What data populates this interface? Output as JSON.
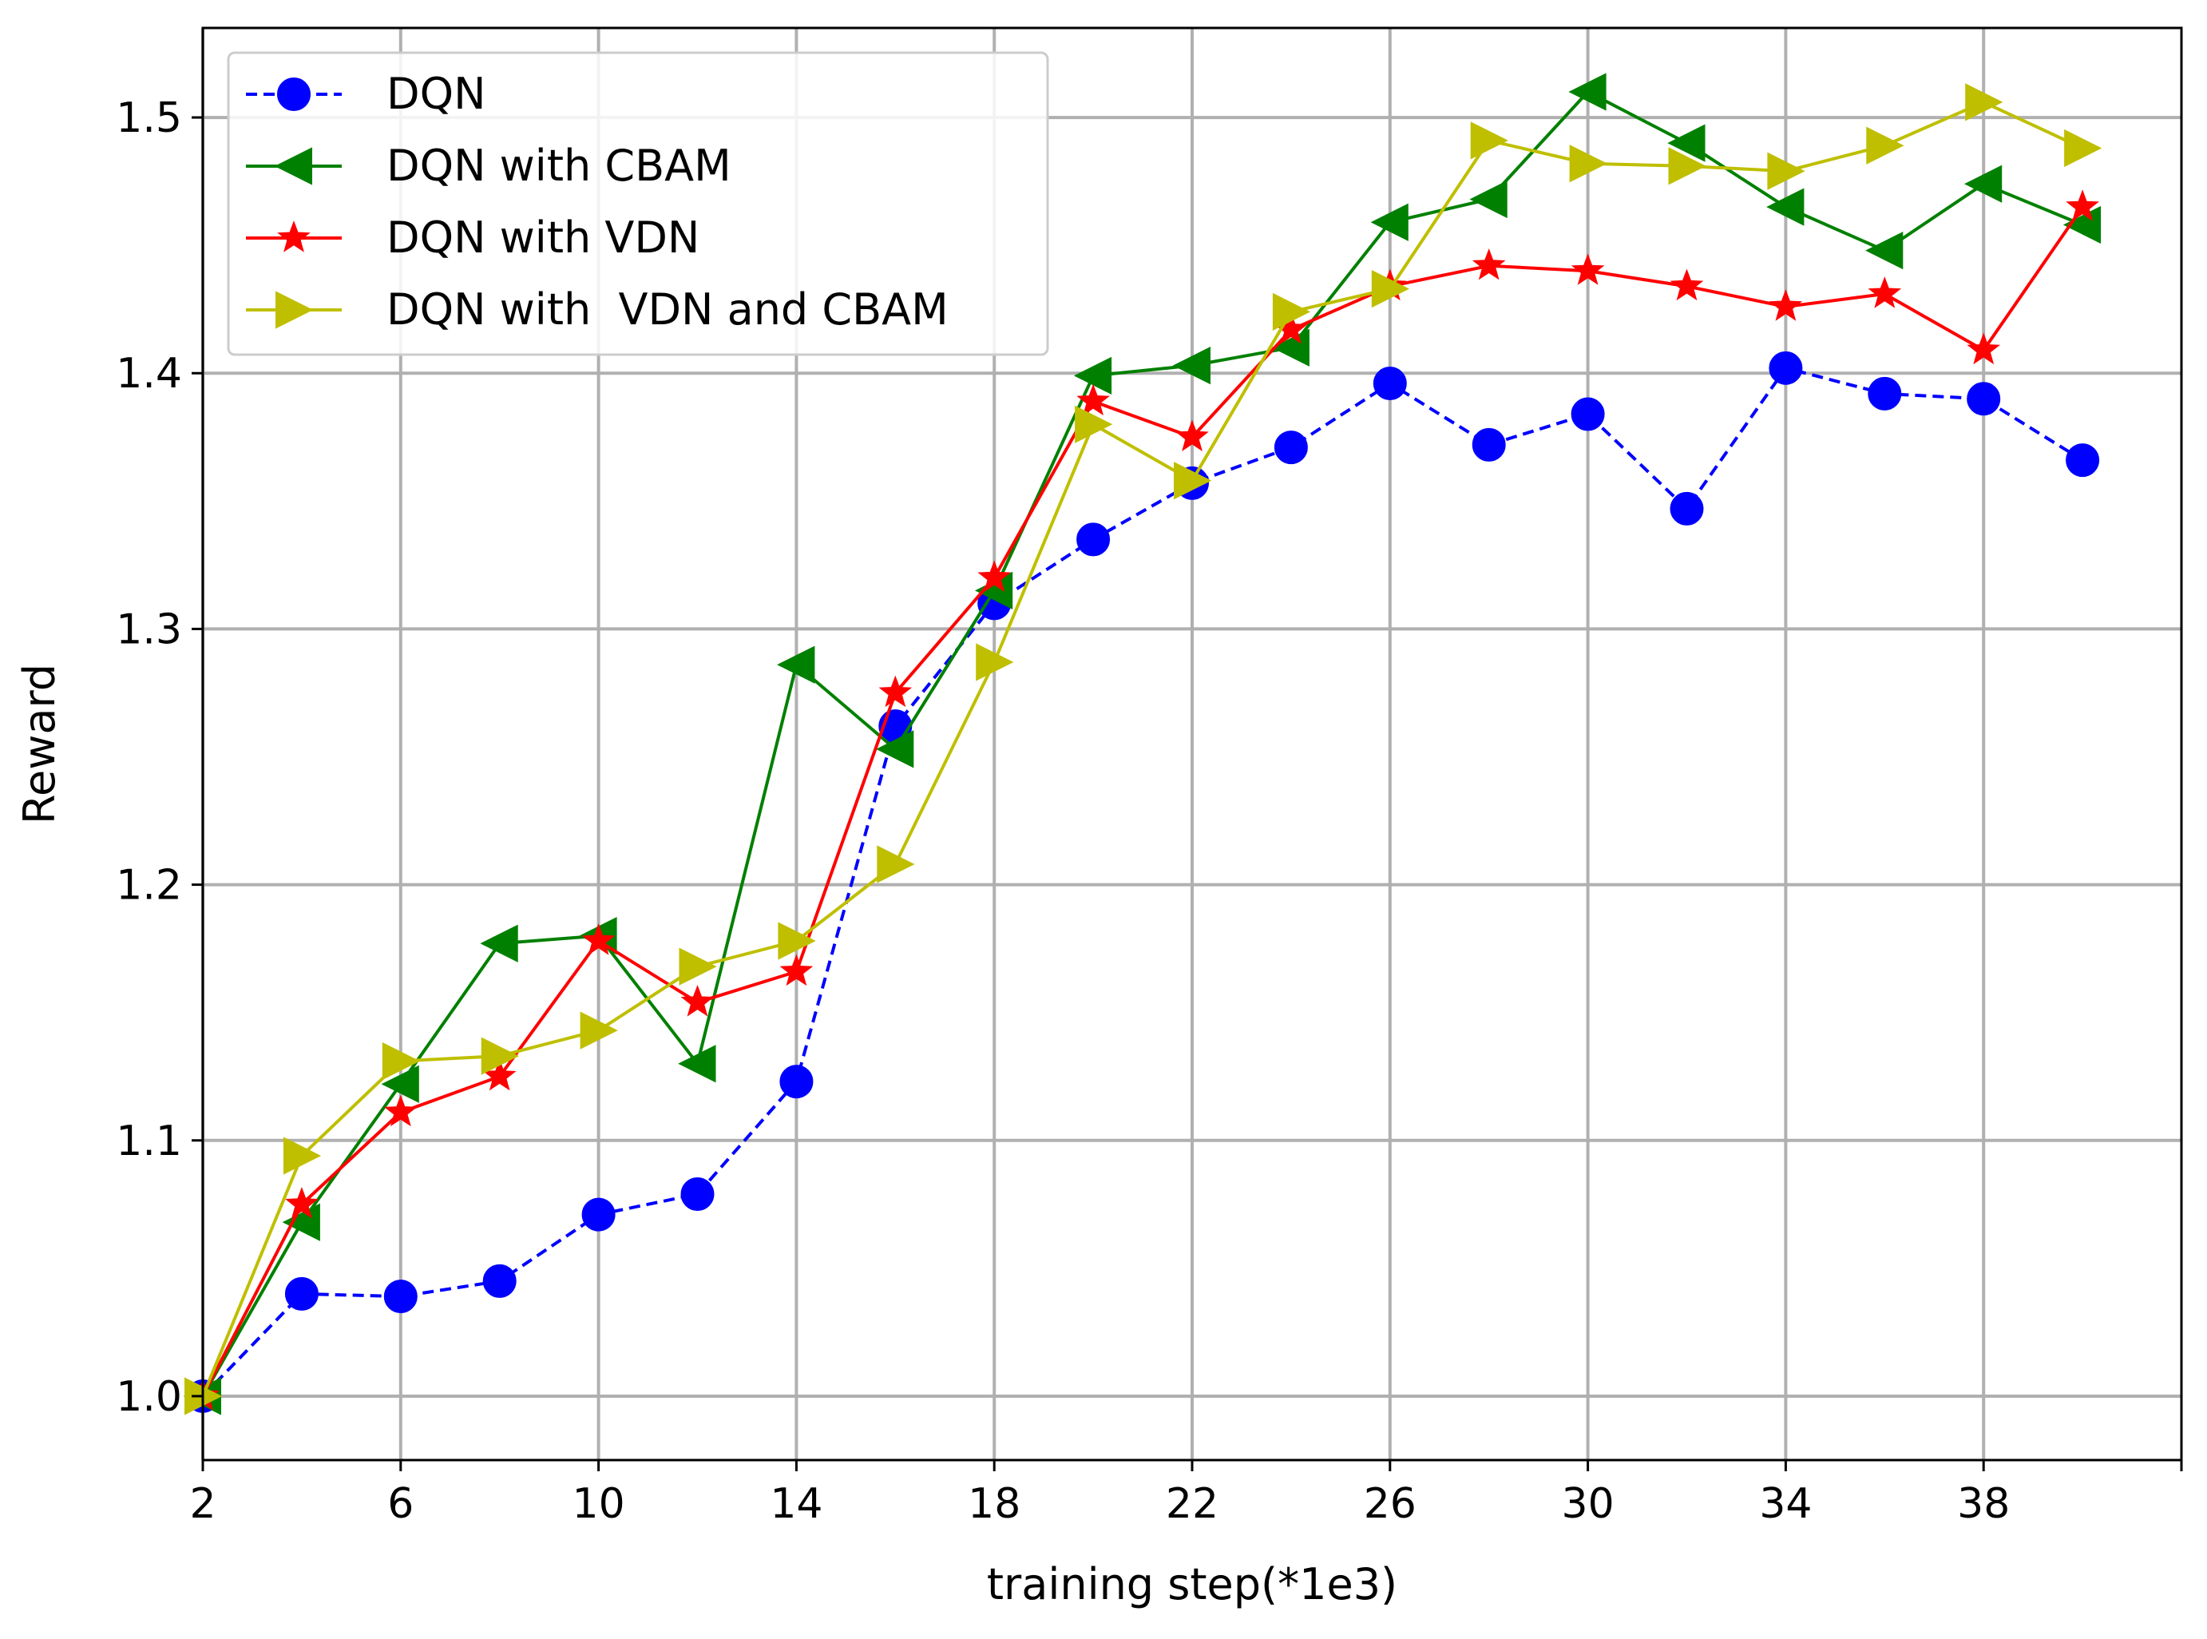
{
  "chart_data": {
    "type": "line",
    "title": "",
    "xlabel": "training step(*1e3)",
    "ylabel": "Reward",
    "xlim": [
      2,
      42
    ],
    "ylim": [
      0.975,
      1.535
    ],
    "grid": true,
    "legend_position": "top-left",
    "x_ticks": [
      2,
      6,
      10,
      14,
      18,
      22,
      26,
      30,
      34,
      38
    ],
    "x_tick_labels": [
      "2",
      "6",
      "10",
      "14",
      "18",
      "22",
      "26",
      "30",
      "34",
      "38"
    ],
    "y_ticks": [
      1.0,
      1.1,
      1.2,
      1.3,
      1.4,
      1.5
    ],
    "y_tick_labels": [
      "1.0",
      "1.1",
      "1.2",
      "1.3",
      "1.4",
      "1.5"
    ],
    "x": [
      2,
      4,
      6,
      8,
      10,
      12,
      14,
      16,
      18,
      20,
      22,
      24,
      26,
      28,
      30,
      32,
      34,
      36,
      38,
      40
    ],
    "series": [
      {
        "name": "DQN",
        "color": "#0000ff",
        "line_style": "dashed",
        "marker": "circle",
        "values": [
          1.0,
          1.04,
          1.039,
          1.045,
          1.071,
          1.079,
          1.123,
          1.262,
          1.31,
          1.335,
          1.357,
          1.371,
          1.396,
          1.372,
          1.384,
          1.347,
          1.402,
          1.392,
          1.39,
          1.366
        ]
      },
      {
        "name": "DQN with CBAM",
        "color": "#008000",
        "line_style": "solid",
        "marker": "triangle-left",
        "values": [
          1.0,
          1.068,
          1.122,
          1.177,
          1.18,
          1.13,
          1.286,
          1.253,
          1.315,
          1.399,
          1.403,
          1.41,
          1.459,
          1.468,
          1.51,
          1.49,
          1.465,
          1.448,
          1.474,
          1.458
        ]
      },
      {
        "name": "DQN with VDN",
        "color": "#ff0000",
        "line_style": "solid",
        "marker": "star",
        "values": [
          1.0,
          1.075,
          1.111,
          1.125,
          1.178,
          1.154,
          1.166,
          1.275,
          1.32,
          1.389,
          1.375,
          1.417,
          1.434,
          1.442,
          1.44,
          1.434,
          1.426,
          1.431,
          1.409,
          1.465
        ]
      },
      {
        "name": "DQN with  VDN and CBAM",
        "color": "#bfbf00",
        "line_style": "solid",
        "marker": "triangle-right",
        "values": [
          1.0,
          1.094,
          1.131,
          1.133,
          1.143,
          1.168,
          1.178,
          1.208,
          1.287,
          1.38,
          1.358,
          1.424,
          1.433,
          1.491,
          1.482,
          1.481,
          1.479,
          1.489,
          1.506,
          1.488
        ]
      }
    ]
  }
}
